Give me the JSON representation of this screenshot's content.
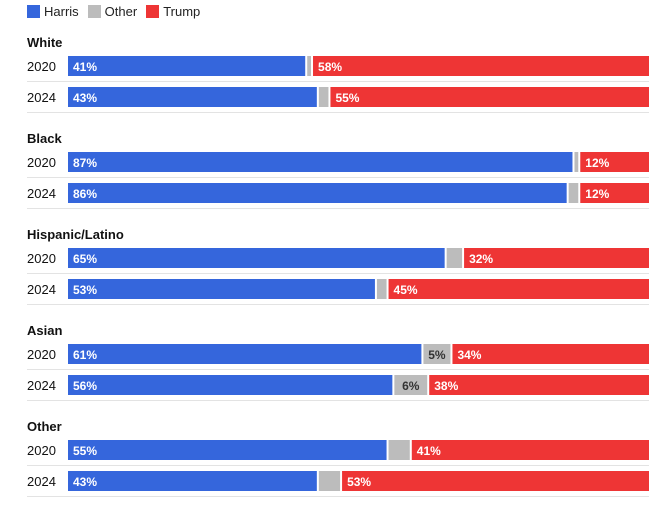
{
  "legend": [
    {
      "label": "Harris",
      "color": "#3566dc"
    },
    {
      "label": "Other",
      "color": "#bcbcbc"
    },
    {
      "label": "Trump",
      "color": "#ee3535"
    }
  ],
  "chart_data": {
    "type": "bar",
    "orientation": "horizontal",
    "stacked": true,
    "xlim": [
      0,
      100
    ],
    "unit": "%",
    "series_colors": {
      "Harris": "#3566dc",
      "Other": "#bcbcbc",
      "Trump": "#ee3535"
    },
    "groups": [
      {
        "name": "White",
        "rows": [
          {
            "year": "2020",
            "Harris": 41,
            "Other": 1,
            "Trump": 58,
            "other_label": ""
          },
          {
            "year": "2024",
            "Harris": 43,
            "Other": 2,
            "Trump": 55,
            "other_label": ""
          }
        ]
      },
      {
        "name": "Black",
        "rows": [
          {
            "year": "2020",
            "Harris": 87,
            "Other": 1,
            "Trump": 12,
            "other_label": ""
          },
          {
            "year": "2024",
            "Harris": 86,
            "Other": 2,
            "Trump": 12,
            "other_label": ""
          }
        ]
      },
      {
        "name": "Hispanic/Latino",
        "rows": [
          {
            "year": "2020",
            "Harris": 65,
            "Other": 3,
            "Trump": 32,
            "other_label": ""
          },
          {
            "year": "2024",
            "Harris": 53,
            "Other": 2,
            "Trump": 45,
            "other_label": ""
          }
        ]
      },
      {
        "name": "Asian",
        "rows": [
          {
            "year": "2020",
            "Harris": 61,
            "Other": 5,
            "Trump": 34,
            "other_label": "5%"
          },
          {
            "year": "2024",
            "Harris": 56,
            "Other": 6,
            "Trump": 38,
            "other_label": "6%"
          }
        ]
      },
      {
        "name": "Other",
        "rows": [
          {
            "year": "2020",
            "Harris": 55,
            "Other": 4,
            "Trump": 41,
            "other_label": ""
          },
          {
            "year": "2024",
            "Harris": 43,
            "Other": 4,
            "Trump": 53,
            "other_label": ""
          }
        ]
      }
    ]
  }
}
